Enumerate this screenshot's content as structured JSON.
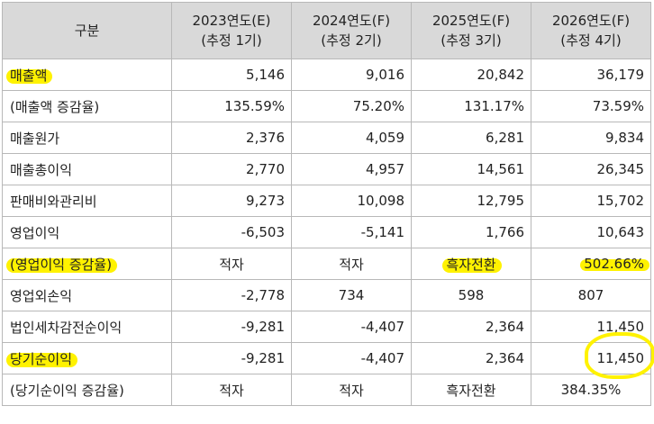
{
  "header": {
    "col0": "구분",
    "cols": [
      {
        "l1": "2023연도(E)",
        "l2": "(추정 1기)"
      },
      {
        "l1": "2024연도(F)",
        "l2": "(추정 2기)"
      },
      {
        "l1": "2025연도(F)",
        "l2": "(추정 3기)"
      },
      {
        "l1": "2026연도(F)",
        "l2": "(추정 4기)"
      }
    ]
  },
  "rows": [
    {
      "label": "매출액",
      "values": [
        "5,146",
        "9,016",
        "20,842",
        "36,179"
      ]
    },
    {
      "label": "(매출액 증감율)",
      "values": [
        "135.59%",
        "75.20%",
        "131.17%",
        "73.59%"
      ]
    },
    {
      "label": "매출원가",
      "values": [
        "2,376",
        "4,059",
        "6,281",
        "9,834"
      ]
    },
    {
      "label": "매출총이익",
      "values": [
        "2,770",
        "4,957",
        "14,561",
        "26,345"
      ]
    },
    {
      "label": "판매비와관리비",
      "values": [
        "9,273",
        "10,098",
        "12,795",
        "15,702"
      ]
    },
    {
      "label": "영업이익",
      "values": [
        "-6,503",
        "-5,141",
        "1,766",
        "10,643"
      ]
    },
    {
      "label": "(영업이익 증감율)",
      "values": [
        "적자",
        "적자",
        "흑자전환",
        "502.66%"
      ]
    },
    {
      "label": "영업외손익",
      "values": [
        "-2,778",
        "734",
        "598",
        "807"
      ]
    },
    {
      "label": "법인세차감전순이익",
      "values": [
        "-9,281",
        "-4,407",
        "2,364",
        "11,450"
      ]
    },
    {
      "label": "당기순이익",
      "values": [
        "-9,281",
        "-4,407",
        "2,364",
        "11,450"
      ]
    },
    {
      "label": "(당기순이익 증감율)",
      "values": [
        "적자",
        "적자",
        "흑자전환",
        "384.35%"
      ]
    }
  ],
  "highlight_color": "#fff200"
}
